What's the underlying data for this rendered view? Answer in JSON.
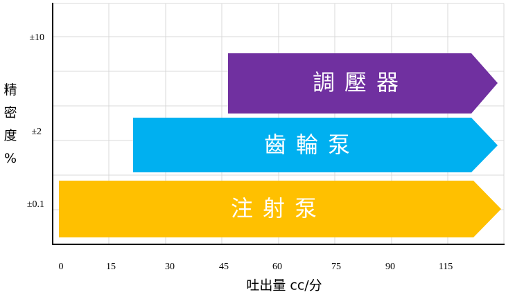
{
  "y_axis": {
    "title": "精密度%",
    "labels": [
      "±10",
      "±2",
      "±0.1"
    ]
  },
  "x_axis": {
    "title": "吐出量 cc/分",
    "labels": [
      "0",
      "15",
      "30",
      "45",
      "60",
      "75",
      "90",
      "115"
    ]
  },
  "arrows": [
    {
      "label": "調壓器"
    },
    {
      "label": "齒輪泵"
    },
    {
      "label": "注射泵"
    }
  ]
}
